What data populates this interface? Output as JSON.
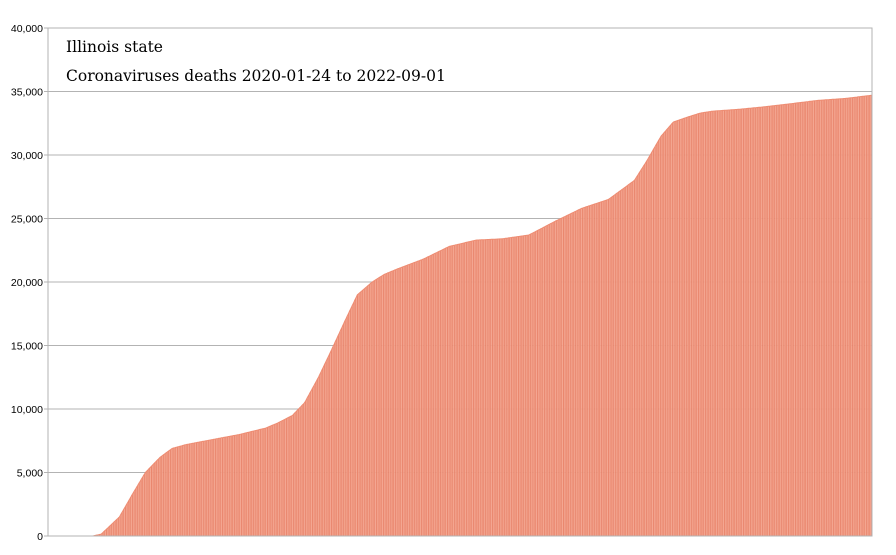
{
  "chart_data": {
    "type": "area",
    "title": "Illinois state",
    "subtitle": "Coronaviruses deaths 2020-01-24 to 2022-09-01",
    "xlabel": "",
    "ylabel": "",
    "x_range": [
      "2020-01-24",
      "2022-09-01"
    ],
    "ylim": [
      0,
      40000
    ],
    "y_ticks": [
      0,
      5000,
      10000,
      15000,
      20000,
      25000,
      30000,
      35000,
      40000
    ],
    "y_tick_labels": [
      "0",
      "5,000",
      "10,000",
      "15,000",
      "20,000",
      "25,000",
      "30,000",
      "35,000",
      "40,000"
    ],
    "grid": true,
    "legend": "none",
    "fill_color": "#f4a58f",
    "stripe_color": "#e8836a",
    "series": [
      {
        "x": [
          "2020-01-24",
          "2020-03-15",
          "2020-03-25",
          "2020-04-15",
          "2020-05-01",
          "2020-05-15",
          "2020-06-01",
          "2020-06-15",
          "2020-07-01",
          "2020-08-01",
          "2020-09-01",
          "2020-10-01",
          "2020-10-15",
          "2020-11-01",
          "2020-11-15",
          "2020-12-01",
          "2020-12-15",
          "2021-01-01",
          "2021-01-15",
          "2021-02-01",
          "2021-02-15",
          "2021-03-01",
          "2021-04-01",
          "2021-05-01",
          "2021-06-01",
          "2021-07-01",
          "2021-08-01",
          "2021-09-01",
          "2021-10-01",
          "2021-11-01",
          "2021-12-01",
          "2021-12-15",
          "2022-01-01",
          "2022-01-15",
          "2022-02-01",
          "2022-02-15",
          "2022-03-01",
          "2022-04-01",
          "2022-05-01",
          "2022-06-01",
          "2022-07-01",
          "2022-08-01",
          "2022-09-01"
        ],
        "values": [
          0,
          0,
          150,
          1500,
          3400,
          5000,
          6200,
          6900,
          7200,
          7600,
          8000,
          8500,
          8900,
          9500,
          10500,
          12500,
          14500,
          17000,
          19000,
          20000,
          20600,
          21000,
          21800,
          22800,
          23300,
          23400,
          23700,
          24800,
          25800,
          26500,
          28000,
          29500,
          31500,
          32600,
          33000,
          33300,
          33450,
          33600,
          33800,
          34050,
          34300,
          34450,
          34700
        ]
      }
    ]
  }
}
